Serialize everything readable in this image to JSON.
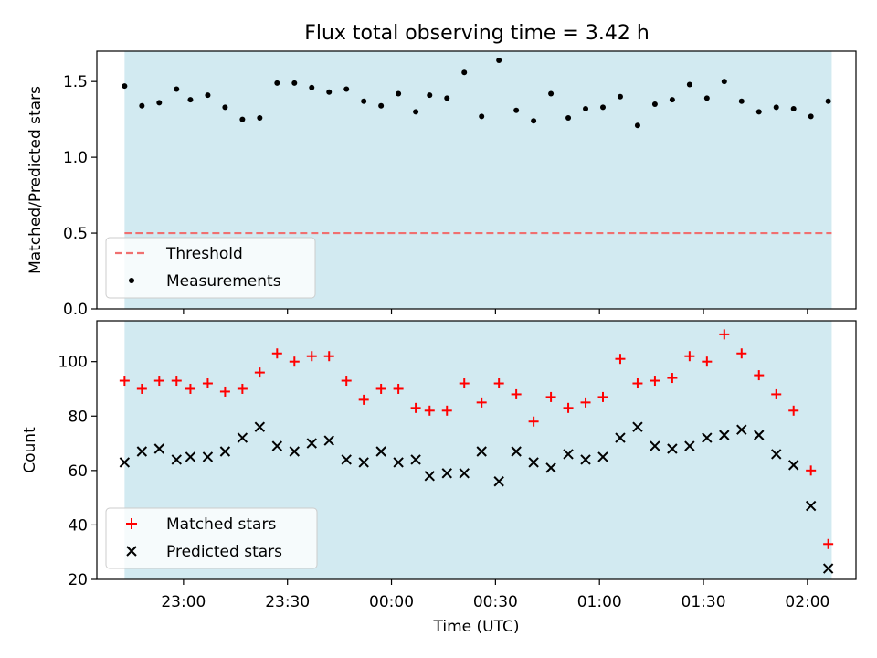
{
  "chart_data": [
    {
      "type": "scatter",
      "title": "Flux total observing time = 3.42 h",
      "ylabel": "Matched/Predicted stars",
      "xlabel": "",
      "xlim": [
        "22:35",
        "02:14"
      ],
      "ylim": [
        0,
        1.7
      ],
      "yticks": [
        "0.0",
        "0.5",
        "1.0",
        "1.5"
      ],
      "shaded_span": [
        "22:43",
        "02:07"
      ],
      "threshold": {
        "name": "Threshold",
        "y": 0.5,
        "color": "#f07070"
      },
      "legend": {
        "placement": "lower-left",
        "entries": [
          "Threshold",
          "Measurements"
        ]
      },
      "series": [
        {
          "name": "Measurements",
          "color": "#000000",
          "x": [
            "22:43",
            "22:48",
            "22:53",
            "22:58",
            "23:02",
            "23:07",
            "23:12",
            "23:17",
            "23:22",
            "23:27",
            "23:32",
            "23:37",
            "23:42",
            "23:47",
            "23:52",
            "23:57",
            "24:02",
            "24:07",
            "24:11",
            "24:16",
            "24:21",
            "24:26",
            "24:31",
            "24:36",
            "24:41",
            "24:46",
            "24:51",
            "24:56",
            "25:01",
            "25:06",
            "25:11",
            "25:16",
            "25:21",
            "25:26",
            "25:31",
            "25:36",
            "25:41",
            "25:46",
            "25:51",
            "25:56",
            "26:01",
            "26:06"
          ],
          "y": [
            1.47,
            1.34,
            1.36,
            1.45,
            1.38,
            1.41,
            1.33,
            1.25,
            1.26,
            1.49,
            1.49,
            1.46,
            1.43,
            1.45,
            1.37,
            1.34,
            1.42,
            1.3,
            1.41,
            1.39,
            1.56,
            1.27,
            1.64,
            1.31,
            1.24,
            1.42,
            1.26,
            1.32,
            1.33,
            1.4,
            1.21,
            1.35,
            1.38,
            1.48,
            1.39,
            1.5,
            1.37,
            1.3,
            1.33,
            1.32,
            1.27,
            1.37
          ]
        }
      ]
    },
    {
      "type": "scatter",
      "title": "",
      "ylabel": "Count",
      "xlabel": "Time (UTC)",
      "xlim": [
        "22:35",
        "02:14"
      ],
      "ylim": [
        20,
        115
      ],
      "yticks": [
        "20",
        "40",
        "60",
        "80",
        "100"
      ],
      "xticks": [
        "23:00",
        "23:30",
        "00:00",
        "00:30",
        "01:00",
        "01:30",
        "02:00"
      ],
      "shaded_span": [
        "22:43",
        "02:07"
      ],
      "legend": {
        "placement": "lower-left",
        "entries": [
          "Matched stars",
          "Predicted stars"
        ]
      },
      "x": [
        "22:43",
        "22:48",
        "22:53",
        "22:58",
        "23:02",
        "23:07",
        "23:12",
        "23:17",
        "23:22",
        "23:27",
        "23:32",
        "23:37",
        "23:42",
        "23:47",
        "23:52",
        "23:57",
        "24:02",
        "24:07",
        "24:11",
        "24:16",
        "24:21",
        "24:26",
        "24:31",
        "24:36",
        "24:41",
        "24:46",
        "24:51",
        "24:56",
        "25:01",
        "25:06",
        "25:11",
        "25:16",
        "25:21",
        "25:26",
        "25:31",
        "25:36",
        "25:41",
        "25:46",
        "25:51",
        "25:56",
        "26:01",
        "26:06"
      ],
      "series": [
        {
          "name": "Matched stars",
          "marker": "plus",
          "color": "#ff0000",
          "values": [
            93,
            90,
            93,
            93,
            90,
            92,
            89,
            90,
            96,
            103,
            100,
            102,
            102,
            93,
            86,
            90,
            90,
            83,
            82,
            82,
            92,
            85,
            92,
            88,
            78,
            87,
            83,
            85,
            87,
            101,
            92,
            93,
            94,
            102,
            100,
            110,
            103,
            95,
            88,
            82,
            60,
            33
          ]
        },
        {
          "name": "Predicted stars",
          "marker": "cross",
          "color": "#000000",
          "values": [
            63,
            67,
            68,
            64,
            65,
            65,
            67,
            72,
            76,
            69,
            67,
            70,
            71,
            64,
            63,
            67,
            63,
            64,
            58,
            59,
            59,
            67,
            56,
            67,
            63,
            61,
            66,
            64,
            65,
            72,
            76,
            69,
            68,
            69,
            72,
            73,
            75,
            73,
            66,
            62,
            47,
            24
          ]
        }
      ]
    }
  ]
}
